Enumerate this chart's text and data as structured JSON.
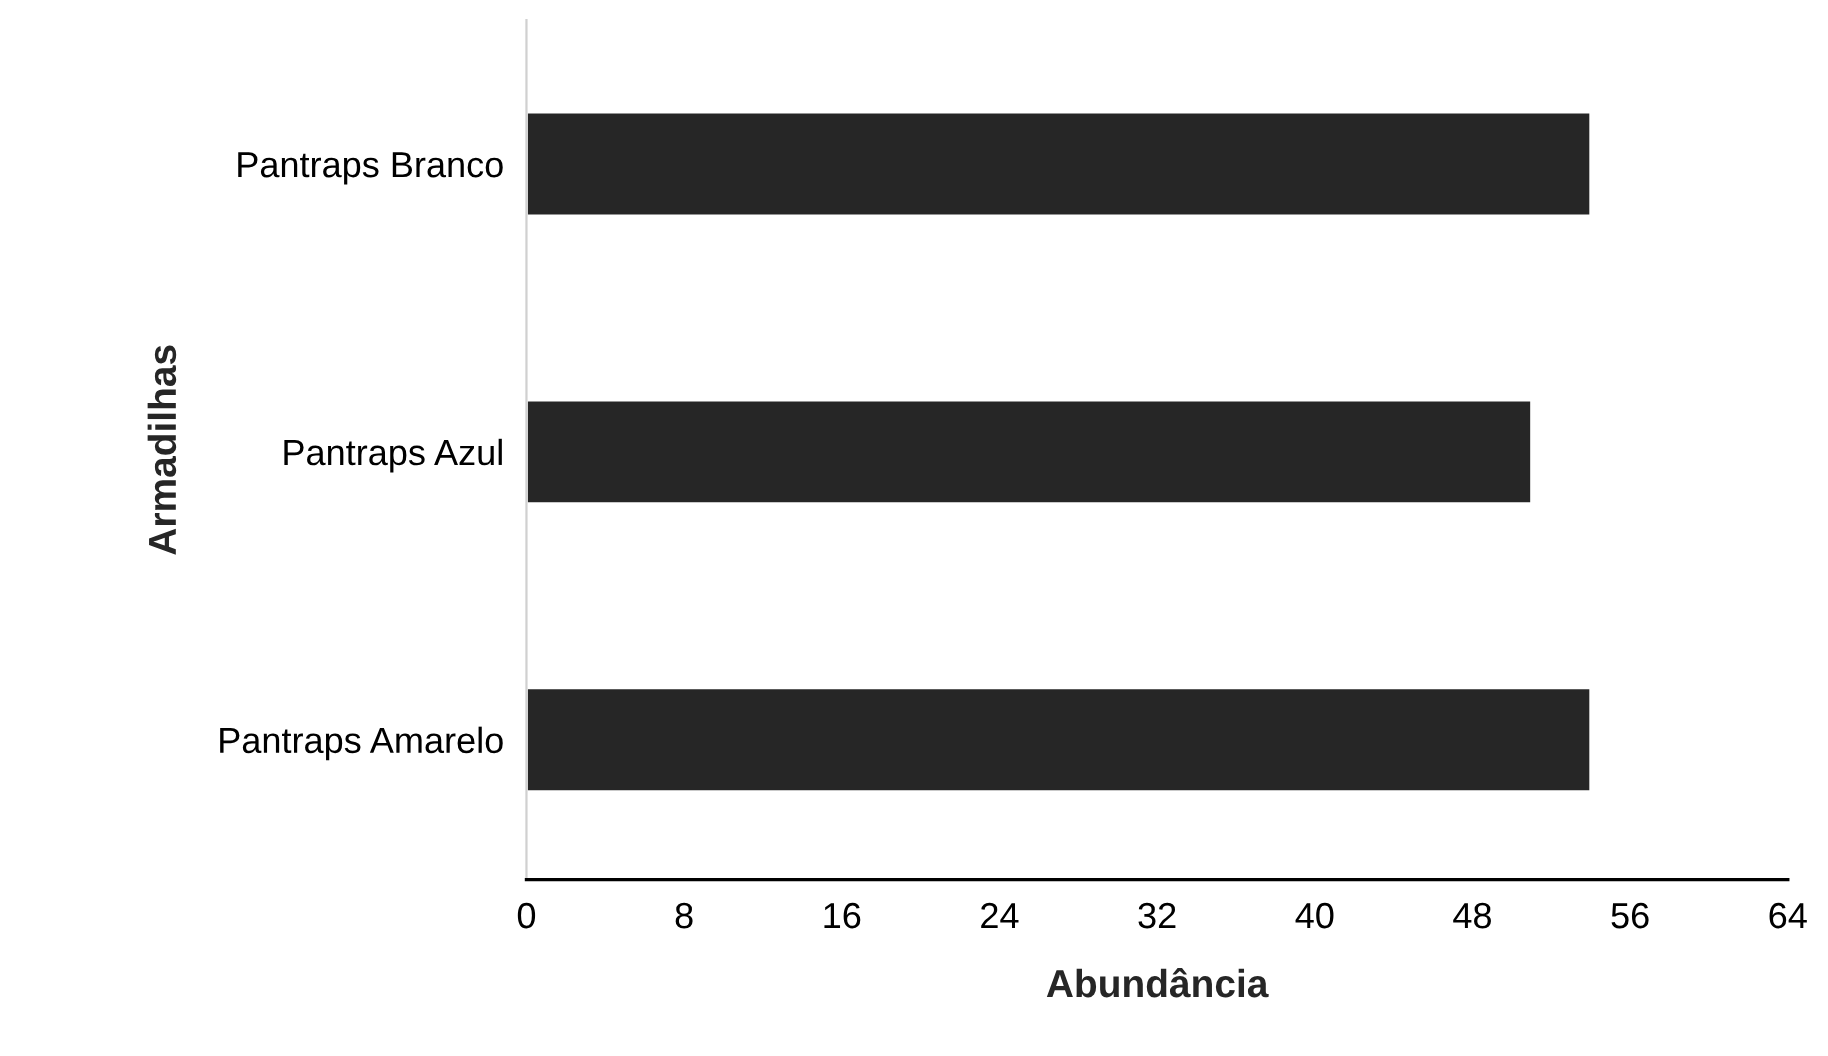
{
  "chart_data": {
    "type": "bar",
    "orientation": "horizontal",
    "xlabel": "Abundância",
    "ylabel": "Armadilhas",
    "categories": [
      "Pantraps Branco",
      "Pantraps Azul",
      "Pantraps Amarelo"
    ],
    "values": [
      54,
      51,
      54
    ],
    "color": "#262626",
    "xlim": [
      0,
      64
    ],
    "xticks": [
      0,
      8,
      16,
      24,
      32,
      40,
      48,
      56,
      64
    ],
    "grid": false,
    "legend": false
  }
}
